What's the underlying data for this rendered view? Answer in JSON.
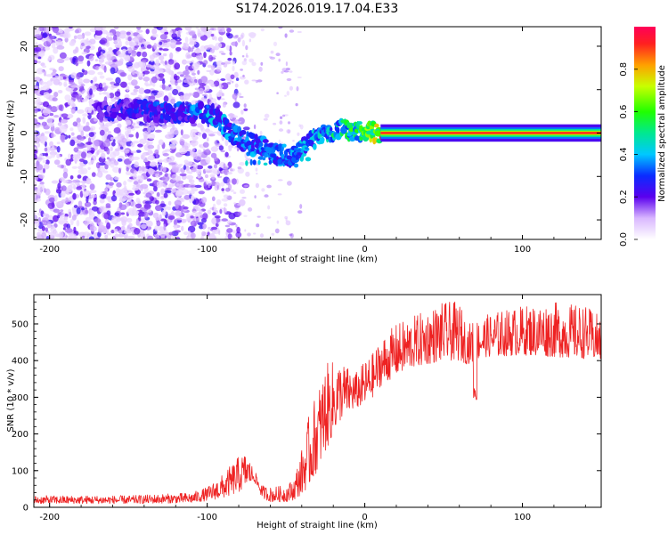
{
  "title": "S174.2026.019.17.04.E33",
  "chart_data": [
    {
      "type": "heatmap",
      "xlabel": "Height of straight line (km)",
      "ylabel": "Frequency (Hz)",
      "xlim": [
        -210,
        150
      ],
      "ylim": [
        -24.5,
        24.5
      ],
      "xticks": [
        -200,
        -100,
        0,
        100
      ],
      "yticks": [
        -20,
        -10,
        0,
        10,
        20
      ],
      "ridge": {
        "x": [
          -165,
          -150,
          -135,
          -120,
          -107,
          -95,
          -85,
          -75,
          -65,
          -55,
          -45,
          -35,
          -25,
          -15,
          -8,
          0,
          10,
          150
        ],
        "freq": [
          5,
          5.5,
          5,
          4.5,
          5,
          4,
          0,
          -2,
          -3,
          -5,
          -6,
          -2,
          0,
          1,
          0.5,
          0.5,
          0,
          0
        ],
        "amp": [
          0.25,
          0.25,
          0.3,
          0.3,
          0.35,
          0.4,
          0.35,
          0.35,
          0.35,
          0.35,
          0.35,
          0.4,
          0.45,
          0.5,
          0.55,
          0.6,
          0.85,
          0.85
        ]
      },
      "colorbar": {
        "label": "Normalized spectral amplitude",
        "range": [
          0,
          1
        ],
        "ticks": [
          "0.0",
          "0.2",
          "0.4",
          "0.6",
          "0.8"
        ]
      }
    },
    {
      "type": "line",
      "xlabel": "Height of straight line (km)",
      "ylabel": "SNR (10 * v/v)",
      "xlim": [
        -210,
        150
      ],
      "ylim": [
        0,
        580
      ],
      "xticks": [
        -200,
        -100,
        0,
        100
      ],
      "yticks": [
        0,
        100,
        200,
        300,
        400,
        500
      ],
      "color": "#ee2222",
      "envelope": {
        "x": [
          -210,
          -150,
          -110,
          -100,
          -90,
          -80,
          -75,
          -70,
          -65,
          -60,
          -50,
          -45,
          -40,
          -35,
          -30,
          -25,
          -20,
          -15,
          -10,
          -5,
          0,
          5,
          10,
          20,
          30,
          40,
          50,
          60,
          65,
          70,
          75,
          80,
          100,
          120,
          140,
          150
        ],
        "base": [
          10,
          10,
          12,
          18,
          25,
          40,
          60,
          70,
          25,
          15,
          15,
          20,
          35,
          60,
          100,
          150,
          200,
          240,
          260,
          270,
          280,
          300,
          330,
          360,
          380,
          390,
          400,
          400,
          390,
          400,
          410,
          410,
          415,
          410,
          405,
          400
        ],
        "peak": [
          32,
          32,
          40,
          55,
          90,
          140,
          150,
          100,
          60,
          55,
          60,
          80,
          160,
          260,
          320,
          390,
          400,
          400,
          380,
          370,
          400,
          420,
          460,
          500,
          520,
          540,
          560,
          560,
          500,
          510,
          520,
          530,
          550,
          560,
          550,
          520
        ]
      },
      "dips": [
        {
          "x": 70,
          "value": 290
        }
      ]
    }
  ]
}
